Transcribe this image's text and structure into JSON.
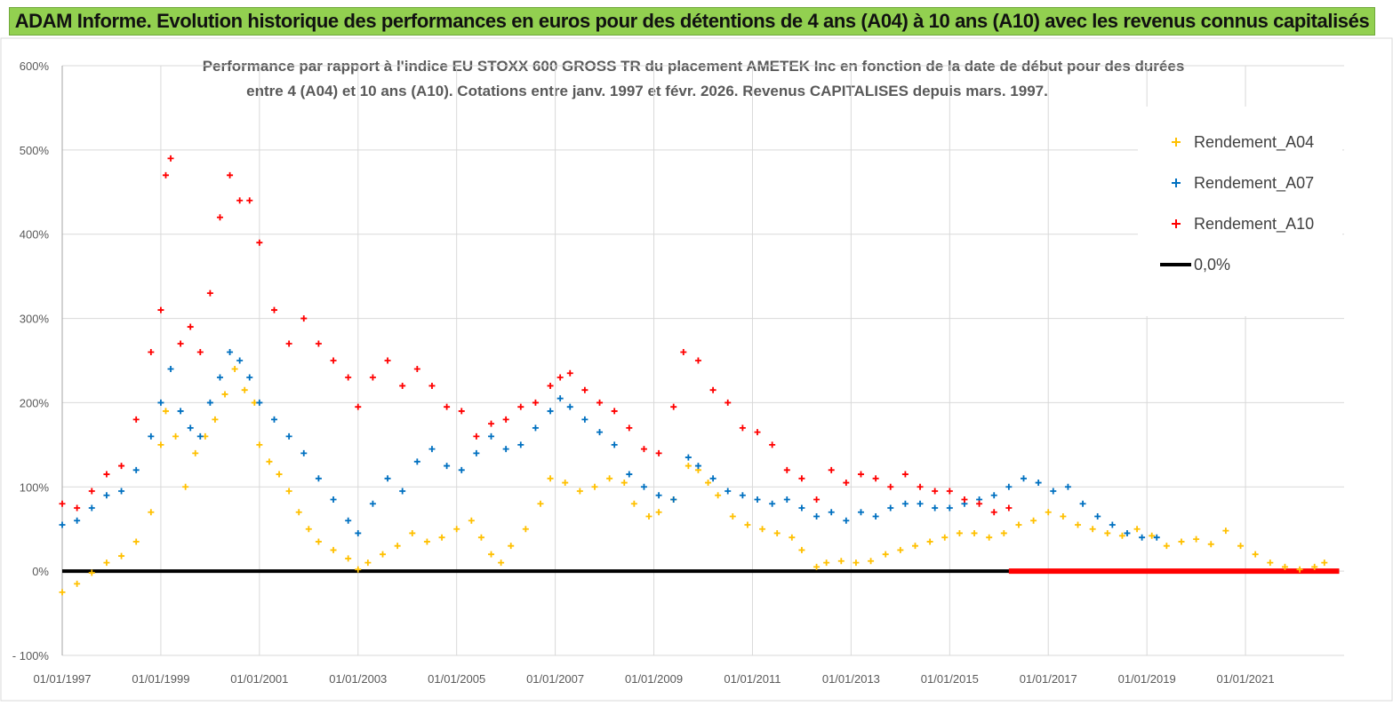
{
  "banner": {
    "title": "ADAM Informe. Evolution historique des performances en euros pour des détentions de 4 ans (A04) à 10 ans (A10) avec les revenus connus capitalisés"
  },
  "colors": {
    "banner_bg": "#92d050",
    "a04": "#ffc000",
    "a07": "#0070c0",
    "a10": "#ff0000",
    "zero": "#000000",
    "grid": "#d9d9d9"
  },
  "chart_data": {
    "type": "scatter",
    "title_line1": "Performance par rapport à l'indice EU STOXX 600 GROSS TR  du placement AMETEK Inc en fonction de la date de début pour des durées",
    "title_line2": "entre 4 (A04) et 10 ans (A10).  Cotations entre janv. 1997 et févr. 2026. Revenus CAPITALISES depuis mars. 1997.",
    "xlabel": "",
    "ylabel": "",
    "x_range": [
      1997.0,
      2023.0
    ],
    "ylim": [
      -100,
      600
    ],
    "y_ticks": [
      -100,
      0,
      100,
      200,
      300,
      400,
      500,
      600
    ],
    "y_tick_labels": [
      "- 100%",
      "0%",
      "100%",
      "200%",
      "300%",
      "400%",
      "500%",
      "600%"
    ],
    "x_ticks": [
      1997,
      1999,
      2001,
      2003,
      2005,
      2007,
      2009,
      2011,
      2013,
      2015,
      2017,
      2019,
      2021
    ],
    "x_tick_labels": [
      "01/01/1997",
      "01/01/1999",
      "01/01/2001",
      "01/01/2003",
      "01/01/2005",
      "01/01/2007",
      "01/01/2009",
      "01/01/2011",
      "01/01/2013",
      "01/01/2015",
      "01/01/2017",
      "01/01/2019",
      "01/01/2021"
    ],
    "grid": true,
    "legend_position": "top-right",
    "series": [
      {
        "name": "Rendement_A04",
        "marker": "+",
        "color": "#ffc000",
        "points": [
          [
            1997.0,
            -25
          ],
          [
            1997.3,
            -15
          ],
          [
            1997.6,
            -2
          ],
          [
            1997.9,
            10
          ],
          [
            1998.2,
            18
          ],
          [
            1998.5,
            35
          ],
          [
            1998.8,
            70
          ],
          [
            1999.0,
            150
          ],
          [
            1999.1,
            190
          ],
          [
            1999.3,
            160
          ],
          [
            1999.5,
            100
          ],
          [
            1999.7,
            140
          ],
          [
            1999.9,
            160
          ],
          [
            2000.1,
            180
          ],
          [
            2000.3,
            210
          ],
          [
            2000.5,
            240
          ],
          [
            2000.7,
            215
          ],
          [
            2000.9,
            200
          ],
          [
            2001.0,
            150
          ],
          [
            2001.2,
            130
          ],
          [
            2001.4,
            115
          ],
          [
            2001.6,
            95
          ],
          [
            2001.8,
            70
          ],
          [
            2002.0,
            50
          ],
          [
            2002.2,
            35
          ],
          [
            2002.5,
            25
          ],
          [
            2002.8,
            15
          ],
          [
            2003.0,
            2
          ],
          [
            2003.2,
            10
          ],
          [
            2003.5,
            20
          ],
          [
            2003.8,
            30
          ],
          [
            2004.1,
            45
          ],
          [
            2004.4,
            35
          ],
          [
            2004.7,
            40
          ],
          [
            2005.0,
            50
          ],
          [
            2005.3,
            60
          ],
          [
            2005.5,
            40
          ],
          [
            2005.7,
            20
          ],
          [
            2005.9,
            10
          ],
          [
            2006.1,
            30
          ],
          [
            2006.4,
            50
          ],
          [
            2006.7,
            80
          ],
          [
            2006.9,
            110
          ],
          [
            2007.2,
            105
          ],
          [
            2007.5,
            95
          ],
          [
            2007.8,
            100
          ],
          [
            2008.1,
            110
          ],
          [
            2008.4,
            105
          ],
          [
            2008.6,
            80
          ],
          [
            2008.9,
            65
          ],
          [
            2009.1,
            70
          ],
          [
            2009.4,
            85
          ],
          [
            2009.7,
            125
          ],
          [
            2009.9,
            120
          ],
          [
            2010.1,
            105
          ],
          [
            2010.3,
            90
          ],
          [
            2010.6,
            65
          ],
          [
            2010.9,
            55
          ],
          [
            2011.2,
            50
          ],
          [
            2011.5,
            45
          ],
          [
            2011.8,
            40
          ],
          [
            2012.0,
            25
          ],
          [
            2012.3,
            5
          ],
          [
            2012.5,
            10
          ],
          [
            2012.8,
            12
          ],
          [
            2013.1,
            10
          ],
          [
            2013.4,
            12
          ],
          [
            2013.7,
            20
          ],
          [
            2014.0,
            25
          ],
          [
            2014.3,
            30
          ],
          [
            2014.6,
            35
          ],
          [
            2014.9,
            40
          ],
          [
            2015.2,
            45
          ],
          [
            2015.5,
            45
          ],
          [
            2015.8,
            40
          ],
          [
            2016.1,
            45
          ],
          [
            2016.4,
            55
          ],
          [
            2016.7,
            60
          ],
          [
            2017.0,
            70
          ],
          [
            2017.3,
            65
          ],
          [
            2017.6,
            55
          ],
          [
            2017.9,
            50
          ],
          [
            2018.2,
            45
          ],
          [
            2018.5,
            42
          ],
          [
            2018.8,
            50
          ],
          [
            2019.1,
            42
          ],
          [
            2019.4,
            30
          ],
          [
            2019.7,
            35
          ],
          [
            2020.0,
            38
          ],
          [
            2020.3,
            32
          ],
          [
            2020.6,
            48
          ],
          [
            2020.9,
            30
          ],
          [
            2021.2,
            20
          ],
          [
            2021.5,
            10
          ],
          [
            2021.8,
            5
          ],
          [
            2022.1,
            2
          ],
          [
            2022.4,
            5
          ],
          [
            2022.6,
            10
          ]
        ]
      },
      {
        "name": "Rendement_A07",
        "marker": "+",
        "color": "#0070c0",
        "points": [
          [
            1997.0,
            55
          ],
          [
            1997.3,
            60
          ],
          [
            1997.6,
            75
          ],
          [
            1997.9,
            90
          ],
          [
            1998.2,
            95
          ],
          [
            1998.5,
            120
          ],
          [
            1998.8,
            160
          ],
          [
            1999.0,
            200
          ],
          [
            1999.2,
            240
          ],
          [
            1999.4,
            190
          ],
          [
            1999.6,
            170
          ],
          [
            1999.8,
            160
          ],
          [
            2000.0,
            200
          ],
          [
            2000.2,
            230
          ],
          [
            2000.4,
            260
          ],
          [
            2000.6,
            250
          ],
          [
            2000.8,
            230
          ],
          [
            2001.0,
            200
          ],
          [
            2001.3,
            180
          ],
          [
            2001.6,
            160
          ],
          [
            2001.9,
            140
          ],
          [
            2002.2,
            110
          ],
          [
            2002.5,
            85
          ],
          [
            2002.8,
            60
          ],
          [
            2003.0,
            45
          ],
          [
            2003.3,
            80
          ],
          [
            2003.6,
            110
          ],
          [
            2003.9,
            95
          ],
          [
            2004.2,
            130
          ],
          [
            2004.5,
            145
          ],
          [
            2004.8,
            125
          ],
          [
            2005.1,
            120
          ],
          [
            2005.4,
            140
          ],
          [
            2005.7,
            160
          ],
          [
            2006.0,
            145
          ],
          [
            2006.3,
            150
          ],
          [
            2006.6,
            170
          ],
          [
            2006.9,
            190
          ],
          [
            2007.1,
            205
          ],
          [
            2007.3,
            195
          ],
          [
            2007.6,
            180
          ],
          [
            2007.9,
            165
          ],
          [
            2008.2,
            150
          ],
          [
            2008.5,
            115
          ],
          [
            2008.8,
            100
          ],
          [
            2009.1,
            90
          ],
          [
            2009.4,
            85
          ],
          [
            2009.7,
            135
          ],
          [
            2009.9,
            125
          ],
          [
            2010.2,
            110
          ],
          [
            2010.5,
            95
          ],
          [
            2010.8,
            90
          ],
          [
            2011.1,
            85
          ],
          [
            2011.4,
            80
          ],
          [
            2011.7,
            85
          ],
          [
            2012.0,
            75
          ],
          [
            2012.3,
            65
          ],
          [
            2012.6,
            70
          ],
          [
            2012.9,
            60
          ],
          [
            2013.2,
            70
          ],
          [
            2013.5,
            65
          ],
          [
            2013.8,
            75
          ],
          [
            2014.1,
            80
          ],
          [
            2014.4,
            80
          ],
          [
            2014.7,
            75
          ],
          [
            2015.0,
            75
          ],
          [
            2015.3,
            80
          ],
          [
            2015.6,
            85
          ],
          [
            2015.9,
            90
          ],
          [
            2016.2,
            100
          ],
          [
            2016.5,
            110
          ],
          [
            2016.8,
            105
          ],
          [
            2017.1,
            95
          ],
          [
            2017.4,
            100
          ],
          [
            2017.7,
            80
          ],
          [
            2018.0,
            65
          ],
          [
            2018.3,
            55
          ],
          [
            2018.6,
            45
          ],
          [
            2018.9,
            40
          ],
          [
            2019.2,
            40
          ]
        ]
      },
      {
        "name": "Rendement_A10",
        "marker": "+",
        "color": "#ff0000",
        "points": [
          [
            1997.0,
            80
          ],
          [
            1997.3,
            75
          ],
          [
            1997.6,
            95
          ],
          [
            1997.9,
            115
          ],
          [
            1998.2,
            125
          ],
          [
            1998.5,
            180
          ],
          [
            1998.8,
            260
          ],
          [
            1999.0,
            310
          ],
          [
            1999.1,
            470
          ],
          [
            1999.2,
            490
          ],
          [
            1999.4,
            270
          ],
          [
            1999.6,
            290
          ],
          [
            1999.8,
            260
          ],
          [
            2000.0,
            330
          ],
          [
            2000.2,
            420
          ],
          [
            2000.4,
            470
          ],
          [
            2000.6,
            440
          ],
          [
            2000.8,
            440
          ],
          [
            2001.0,
            390
          ],
          [
            2001.3,
            310
          ],
          [
            2001.6,
            270
          ],
          [
            2001.9,
            300
          ],
          [
            2002.2,
            270
          ],
          [
            2002.5,
            250
          ],
          [
            2002.8,
            230
          ],
          [
            2003.0,
            195
          ],
          [
            2003.3,
            230
          ],
          [
            2003.6,
            250
          ],
          [
            2003.9,
            220
          ],
          [
            2004.2,
            240
          ],
          [
            2004.5,
            220
          ],
          [
            2004.8,
            195
          ],
          [
            2005.1,
            190
          ],
          [
            2005.4,
            160
          ],
          [
            2005.7,
            175
          ],
          [
            2006.0,
            180
          ],
          [
            2006.3,
            195
          ],
          [
            2006.6,
            200
          ],
          [
            2006.9,
            220
          ],
          [
            2007.1,
            230
          ],
          [
            2007.3,
            235
          ],
          [
            2007.6,
            215
          ],
          [
            2007.9,
            200
          ],
          [
            2008.2,
            190
          ],
          [
            2008.5,
            170
          ],
          [
            2008.8,
            145
          ],
          [
            2009.1,
            140
          ],
          [
            2009.4,
            195
          ],
          [
            2009.6,
            260
          ],
          [
            2009.9,
            250
          ],
          [
            2010.2,
            215
          ],
          [
            2010.5,
            200
          ],
          [
            2010.8,
            170
          ],
          [
            2011.1,
            165
          ],
          [
            2011.4,
            150
          ],
          [
            2011.7,
            120
          ],
          [
            2012.0,
            110
          ],
          [
            2012.3,
            85
          ],
          [
            2012.6,
            120
          ],
          [
            2012.9,
            105
          ],
          [
            2013.2,
            115
          ],
          [
            2013.5,
            110
          ],
          [
            2013.8,
            100
          ],
          [
            2014.1,
            115
          ],
          [
            2014.4,
            100
          ],
          [
            2014.7,
            95
          ],
          [
            2015.0,
            95
          ],
          [
            2015.3,
            85
          ],
          [
            2015.6,
            80
          ],
          [
            2015.9,
            70
          ],
          [
            2016.2,
            75
          ]
        ]
      },
      {
        "name": "0,0%",
        "marker": "line",
        "color": "#000000",
        "points": [
          [
            1997.0,
            0
          ],
          [
            2022.9,
            0
          ]
        ]
      }
    ]
  }
}
